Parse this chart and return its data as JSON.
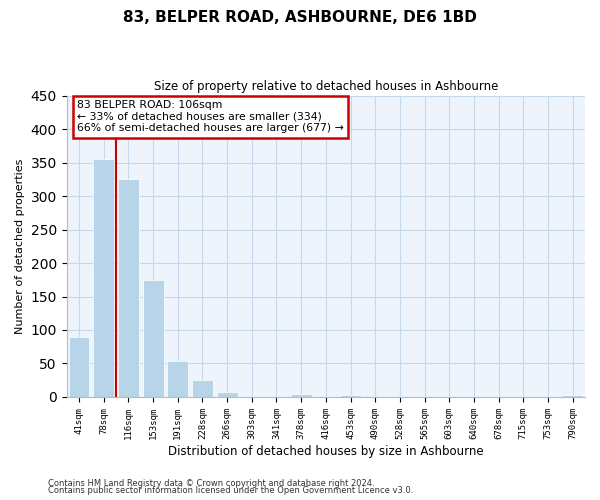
{
  "title": "83, BELPER ROAD, ASHBOURNE, DE6 1BD",
  "subtitle": "Size of property relative to detached houses in Ashbourne",
  "xlabel": "Distribution of detached houses by size in Ashbourne",
  "ylabel": "Number of detached properties",
  "bar_labels": [
    "41sqm",
    "78sqm",
    "116sqm",
    "153sqm",
    "191sqm",
    "228sqm",
    "266sqm",
    "303sqm",
    "341sqm",
    "378sqm",
    "416sqm",
    "453sqm",
    "490sqm",
    "528sqm",
    "565sqm",
    "603sqm",
    "640sqm",
    "678sqm",
    "715sqm",
    "753sqm",
    "790sqm"
  ],
  "bar_values": [
    90,
    355,
    325,
    175,
    53,
    26,
    8,
    0,
    0,
    5,
    0,
    3,
    0,
    0,
    0,
    0,
    0,
    0,
    0,
    0,
    3
  ],
  "bar_color": "#b8d4e8",
  "property_line_color": "#cc0000",
  "annotation_text_line1": "83 BELPER ROAD: 106sqm",
  "annotation_text_line2": "← 33% of detached houses are smaller (334)",
  "annotation_text_line3": "66% of semi-detached houses are larger (677) →",
  "annotation_box_facecolor": "#ffffff",
  "annotation_box_edgecolor": "#cc0000",
  "ylim": [
    0,
    450
  ],
  "plot_bg": "#eef4fb",
  "grid_color": "#c5d8ec",
  "footer1": "Contains HM Land Registry data © Crown copyright and database right 2024.",
  "footer2": "Contains public sector information licensed under the Open Government Licence v3.0."
}
